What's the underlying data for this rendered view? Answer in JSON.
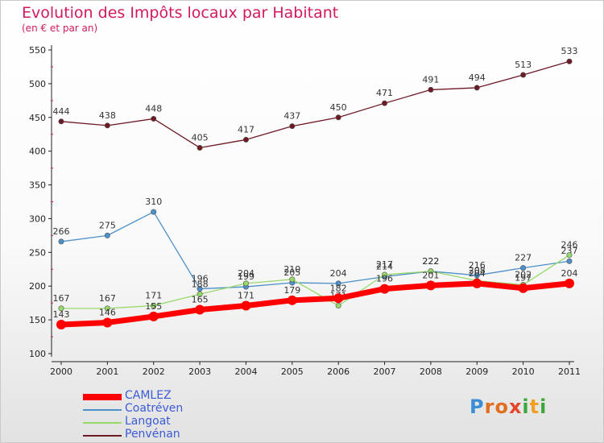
{
  "title": "Evolution des Impôts locaux par Habitant",
  "subtitle": "(en € et par an)",
  "brand": {
    "text": "Proxiti",
    "letters": [
      "P",
      "r",
      "o",
      "x",
      "i",
      "t",
      "i"
    ],
    "colors": [
      "#3a8fd6",
      "#e07020",
      "#e07020",
      "#e4462c",
      "#3aa83a",
      "#f0a020",
      "#3aa83a"
    ]
  },
  "chart_data": {
    "type": "line",
    "x": [
      "2000",
      "2001",
      "2002",
      "2003",
      "2004",
      "2005",
      "2006",
      "2007",
      "2008",
      "2009",
      "2010",
      "2011"
    ],
    "ylim": [
      100,
      550
    ],
    "yticks": [
      100,
      150,
      200,
      250,
      300,
      350,
      400,
      450,
      500,
      550
    ],
    "grid": false,
    "legend_position": "bottom-left",
    "series": [
      {
        "name": "Penvénan",
        "color": "#6e1a24",
        "values": [
          444,
          438,
          448,
          405,
          417,
          437,
          450,
          471,
          491,
          494,
          513,
          533
        ]
      },
      {
        "name": "Coatréven",
        "color": "#4d90c9",
        "values": [
          266,
          275,
          310,
          196,
          199,
          205,
          204,
          214,
          222,
          216,
          227,
          237
        ]
      },
      {
        "name": "Langoat",
        "color": "#96d96a",
        "values": [
          167,
          167,
          171,
          188,
          204,
          210,
          171,
          217,
          222,
          208,
          202,
          246
        ]
      },
      {
        "name": "CAMLEZ",
        "color": "#ff0000",
        "values": [
          143,
          146,
          155,
          165,
          171,
          179,
          182,
          196,
          201,
          204,
          197,
          204
        ]
      }
    ],
    "legend_order": [
      "CAMLEZ",
      "Coatréven",
      "Langoat",
      "Penvénan"
    ]
  }
}
